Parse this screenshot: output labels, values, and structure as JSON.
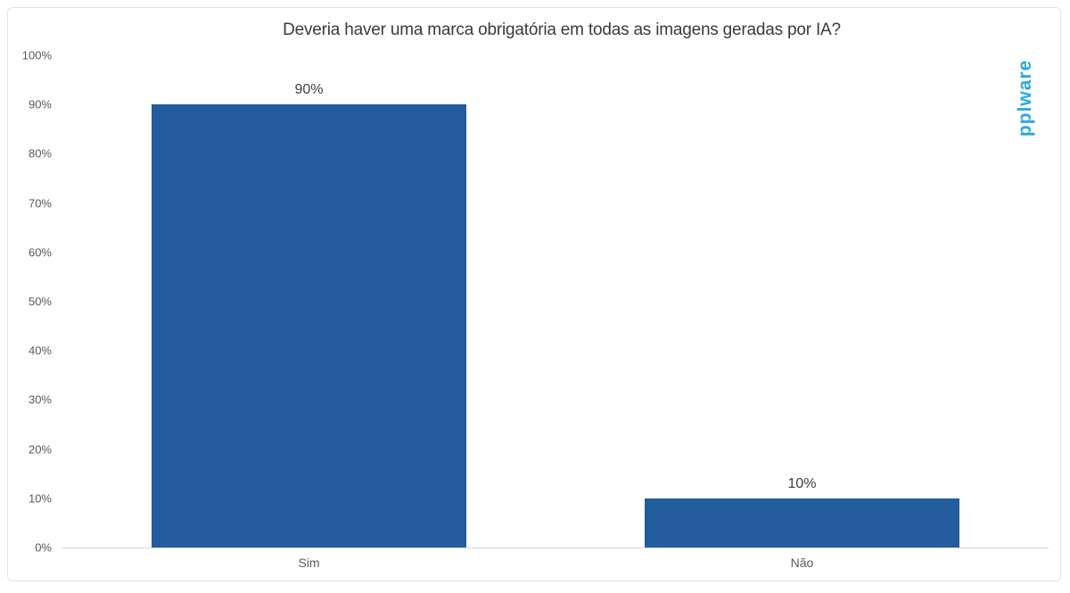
{
  "chart_data": {
    "type": "bar",
    "title": "Deveria haver uma marca obrigatória em todas as imagens geradas por IA?",
    "categories": [
      "Sim",
      "Não"
    ],
    "values": [
      90,
      10
    ],
    "value_labels": [
      "90%",
      "10%"
    ],
    "xlabel": "",
    "ylabel": "",
    "ylim": [
      0,
      100
    ],
    "ytick_step": 10,
    "ytick_labels": [
      "0%",
      "10%",
      "20%",
      "30%",
      "40%",
      "50%",
      "60%",
      "70%",
      "80%",
      "90%",
      "100%"
    ],
    "grid": false,
    "legend": false,
    "bar_color": "#235c9c",
    "background": "#ffffff"
  },
  "brand": {
    "logo_text": "pplware",
    "logo_color": "#2aa9e0"
  },
  "styles": {
    "title_color": "#3a3a3a",
    "axis_label_color": "#595959",
    "value_label_color": "#404040",
    "axis_line_color": "#d9d9d9",
    "frame_border_color": "#e2e2e2"
  }
}
